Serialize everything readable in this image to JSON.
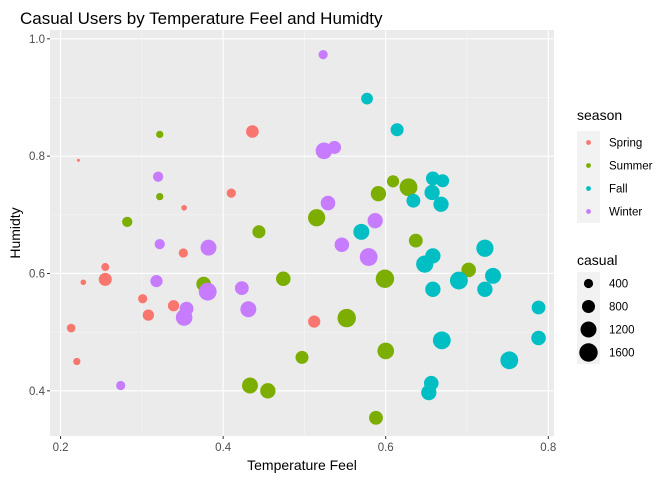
{
  "chart_data": {
    "type": "scatter",
    "title": "Casual Users by Temperature Feel and Humidty",
    "xlabel": "Temperature Feel",
    "ylabel": "Humidty",
    "xlim": [
      0.187,
      0.807
    ],
    "ylim": [
      0.323,
      1.015
    ],
    "x_ticks": [
      "0.2",
      "0.4",
      "0.6",
      "0.8"
    ],
    "x_tick_values": [
      0.2,
      0.4,
      0.6,
      0.8
    ],
    "y_ticks": [
      "0.4",
      "0.6",
      "0.8",
      "1.0"
    ],
    "y_tick_values": [
      0.4,
      0.6,
      0.8,
      1.0
    ],
    "grid": true,
    "legend_position": "right",
    "color_legend": {
      "title": "season",
      "entries": [
        {
          "label": "Spring",
          "color": "#F8766D"
        },
        {
          "label": "Summer",
          "color": "#7CAE00"
        },
        {
          "label": "Fall",
          "color": "#00BFC4"
        },
        {
          "label": "Winter",
          "color": "#C77CFF"
        }
      ]
    },
    "size_legend": {
      "title": "casual",
      "entries": [
        {
          "label": "400",
          "value": 400
        },
        {
          "label": "800",
          "value": 800
        },
        {
          "label": "1200",
          "value": 1200
        },
        {
          "label": "1600",
          "value": 1600
        }
      ]
    },
    "series": [
      {
        "name": "Spring",
        "points": [
          {
            "x": 0.222,
            "y": 0.793,
            "casual": 30
          },
          {
            "x": 0.436,
            "y": 0.842,
            "casual": 750
          },
          {
            "x": 0.41,
            "y": 0.737,
            "casual": 400
          },
          {
            "x": 0.352,
            "y": 0.712,
            "casual": 150
          },
          {
            "x": 0.351,
            "y": 0.635,
            "casual": 400
          },
          {
            "x": 0.255,
            "y": 0.611,
            "casual": 300
          },
          {
            "x": 0.255,
            "y": 0.59,
            "casual": 800
          },
          {
            "x": 0.228,
            "y": 0.585,
            "casual": 150
          },
          {
            "x": 0.301,
            "y": 0.557,
            "casual": 400
          },
          {
            "x": 0.339,
            "y": 0.545,
            "casual": 600
          },
          {
            "x": 0.308,
            "y": 0.529,
            "casual": 600
          },
          {
            "x": 0.512,
            "y": 0.518,
            "casual": 700
          },
          {
            "x": 0.213,
            "y": 0.507,
            "casual": 350
          },
          {
            "x": 0.22,
            "y": 0.45,
            "casual": 250
          }
        ]
      },
      {
        "name": "Summer",
        "points": [
          {
            "x": 0.322,
            "y": 0.837,
            "casual": 250
          },
          {
            "x": 0.322,
            "y": 0.731,
            "casual": 250
          },
          {
            "x": 0.282,
            "y": 0.688,
            "casual": 500
          },
          {
            "x": 0.444,
            "y": 0.671,
            "casual": 800
          },
          {
            "x": 0.609,
            "y": 0.757,
            "casual": 700
          },
          {
            "x": 0.591,
            "y": 0.736,
            "casual": 1100
          },
          {
            "x": 0.628,
            "y": 0.747,
            "casual": 1500
          },
          {
            "x": 0.515,
            "y": 0.695,
            "casual": 1400
          },
          {
            "x": 0.637,
            "y": 0.656,
            "casual": 900
          },
          {
            "x": 0.702,
            "y": 0.606,
            "casual": 1000
          },
          {
            "x": 0.376,
            "y": 0.582,
            "casual": 1000
          },
          {
            "x": 0.474,
            "y": 0.591,
            "casual": 1000
          },
          {
            "x": 0.599,
            "y": 0.591,
            "casual": 1600
          },
          {
            "x": 0.552,
            "y": 0.524,
            "casual": 1600
          },
          {
            "x": 0.6,
            "y": 0.468,
            "casual": 1300
          },
          {
            "x": 0.497,
            "y": 0.457,
            "casual": 800
          },
          {
            "x": 0.433,
            "y": 0.409,
            "casual": 1200
          },
          {
            "x": 0.455,
            "y": 0.4,
            "casual": 1100
          },
          {
            "x": 0.588,
            "y": 0.354,
            "casual": 900
          }
        ]
      },
      {
        "name": "Fall",
        "points": [
          {
            "x": 0.577,
            "y": 0.898,
            "casual": 650
          },
          {
            "x": 0.614,
            "y": 0.845,
            "casual": 800
          },
          {
            "x": 0.658,
            "y": 0.762,
            "casual": 900
          },
          {
            "x": 0.67,
            "y": 0.758,
            "casual": 800
          },
          {
            "x": 0.657,
            "y": 0.738,
            "casual": 1100
          },
          {
            "x": 0.634,
            "y": 0.724,
            "casual": 900
          },
          {
            "x": 0.668,
            "y": 0.718,
            "casual": 1100
          },
          {
            "x": 0.57,
            "y": 0.671,
            "casual": 1200
          },
          {
            "x": 0.722,
            "y": 0.643,
            "casual": 1400
          },
          {
            "x": 0.658,
            "y": 0.63,
            "casual": 1100
          },
          {
            "x": 0.648,
            "y": 0.616,
            "casual": 1400
          },
          {
            "x": 0.732,
            "y": 0.596,
            "casual": 1200
          },
          {
            "x": 0.69,
            "y": 0.588,
            "casual": 1500
          },
          {
            "x": 0.658,
            "y": 0.573,
            "casual": 1100
          },
          {
            "x": 0.722,
            "y": 0.573,
            "casual": 1100
          },
          {
            "x": 0.788,
            "y": 0.542,
            "casual": 900
          },
          {
            "x": 0.669,
            "y": 0.486,
            "casual": 1500
          },
          {
            "x": 0.788,
            "y": 0.49,
            "casual": 1000
          },
          {
            "x": 0.752,
            "y": 0.452,
            "casual": 1500
          },
          {
            "x": 0.656,
            "y": 0.413,
            "casual": 1000
          },
          {
            "x": 0.653,
            "y": 0.397,
            "casual": 1100
          }
        ]
      },
      {
        "name": "Winter",
        "points": [
          {
            "x": 0.523,
            "y": 0.973,
            "casual": 400
          },
          {
            "x": 0.537,
            "y": 0.815,
            "casual": 800
          },
          {
            "x": 0.524,
            "y": 0.809,
            "casual": 1300
          },
          {
            "x": 0.32,
            "y": 0.765,
            "casual": 500
          },
          {
            "x": 0.529,
            "y": 0.72,
            "casual": 1000
          },
          {
            "x": 0.587,
            "y": 0.69,
            "casual": 1100
          },
          {
            "x": 0.322,
            "y": 0.65,
            "casual": 500
          },
          {
            "x": 0.382,
            "y": 0.644,
            "casual": 1200
          },
          {
            "x": 0.546,
            "y": 0.649,
            "casual": 1000
          },
          {
            "x": 0.579,
            "y": 0.628,
            "casual": 1500
          },
          {
            "x": 0.318,
            "y": 0.587,
            "casual": 700
          },
          {
            "x": 0.423,
            "y": 0.575,
            "casual": 900
          },
          {
            "x": 0.381,
            "y": 0.569,
            "casual": 1500
          },
          {
            "x": 0.355,
            "y": 0.54,
            "casual": 900
          },
          {
            "x": 0.431,
            "y": 0.539,
            "casual": 1200
          },
          {
            "x": 0.352,
            "y": 0.525,
            "casual": 1300
          },
          {
            "x": 0.274,
            "y": 0.409,
            "casual": 400
          }
        ]
      }
    ]
  }
}
